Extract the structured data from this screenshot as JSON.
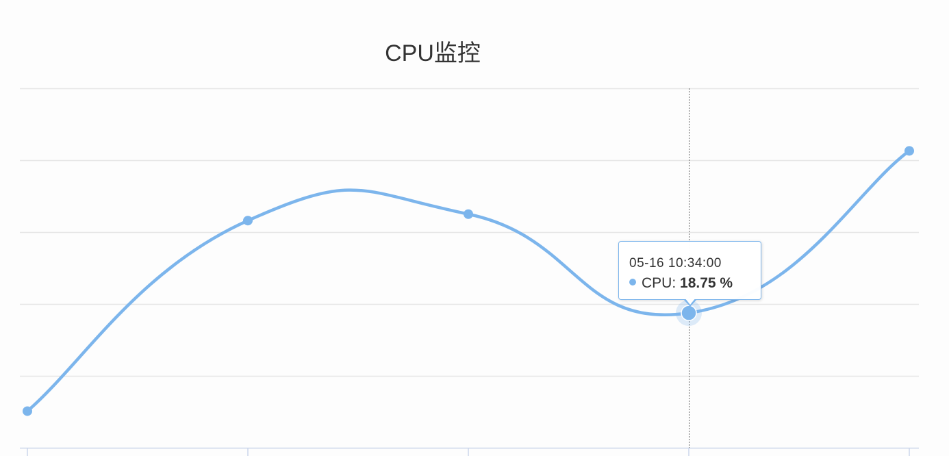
{
  "chart_data": {
    "type": "line",
    "title": "CPU监控",
    "series": [
      {
        "name": "CPU",
        "values": [
          5.1,
          31.6,
          32.5,
          18.75,
          41.3
        ]
      }
    ],
    "ylim": [
      0,
      50
    ],
    "grid": true,
    "smooth": true,
    "color": "#7cb5ec",
    "gridColor": "#e6e6e6",
    "highlightIndex": 3,
    "tooltip": {
      "time": "05-16 10:34:00",
      "series_name": "CPU",
      "separator": ":",
      "value": "18.75 %"
    }
  }
}
